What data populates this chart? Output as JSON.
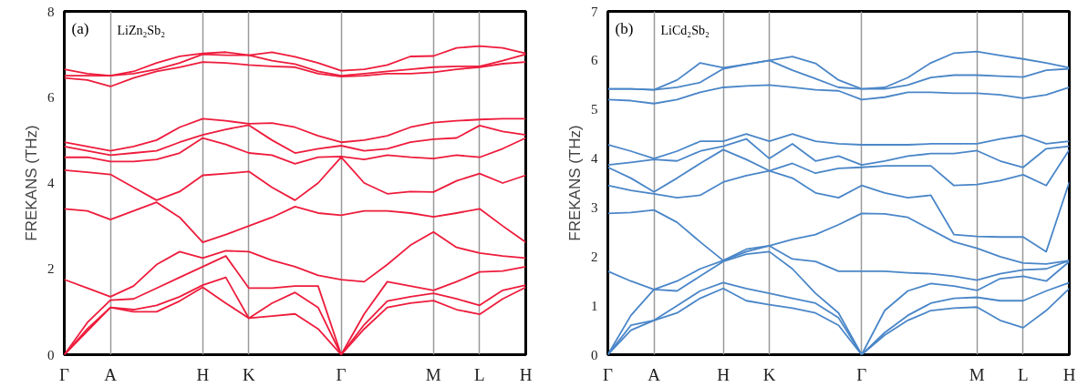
{
  "chart_data": [
    {
      "type": "line",
      "ylabel": "FREKANS (THz)",
      "annotations": [
        "(a)",
        "LiZn₂Sb₂"
      ],
      "categories": [
        "Γ",
        null,
        "A",
        null,
        null,
        null,
        "H",
        null,
        "K",
        null,
        null,
        null,
        "Γ",
        null,
        null,
        null,
        "M",
        null,
        "L",
        null,
        "H"
      ],
      "ylim": [
        0,
        8
      ],
      "yticks": [
        0,
        2,
        4,
        6,
        8
      ],
      "grid": "x",
      "line_style": "solid",
      "marker": "none",
      "series": [
        {
          "color": "#ee1c3c",
          "values": [
            0,
            0.55,
            1.1,
            1.0,
            1.0,
            1.25,
            1.57,
            1.2,
            0.85,
            0.9,
            0.95,
            0.6,
            0,
            0.6,
            1.1,
            1.2,
            1.26,
            1.05,
            0.94,
            1.3,
            1.57
          ]
        },
        {
          "color": "#ee1c3c",
          "values": [
            0,
            0.6,
            1.1,
            1.05,
            1.15,
            1.35,
            1.62,
            1.8,
            0.85,
            1.2,
            1.45,
            1.1,
            0,
            0.7,
            1.25,
            1.35,
            1.43,
            1.3,
            1.15,
            1.5,
            1.62
          ]
        },
        {
          "color": "#ee1c3c",
          "values": [
            0,
            0.75,
            1.27,
            1.3,
            1.55,
            1.8,
            2.05,
            2.3,
            1.55,
            1.55,
            1.6,
            1.6,
            0,
            0.95,
            1.7,
            1.6,
            1.5,
            1.7,
            1.93,
            1.95,
            2.05
          ]
        },
        {
          "color": "#ee1c3c",
          "values": [
            1.75,
            1.55,
            1.35,
            1.6,
            2.1,
            2.4,
            2.25,
            2.42,
            2.4,
            2.2,
            2.05,
            1.85,
            1.75,
            1.7,
            2.1,
            2.55,
            2.86,
            2.5,
            2.37,
            2.3,
            2.25
          ]
        },
        {
          "color": "#ee1c3c",
          "values": [
            3.4,
            3.35,
            3.15,
            3.35,
            3.55,
            3.2,
            2.62,
            2.8,
            3.0,
            3.2,
            3.45,
            3.3,
            3.25,
            3.35,
            3.35,
            3.3,
            3.21,
            3.3,
            3.4,
            3.0,
            2.62
          ]
        },
        {
          "color": "#ee1c3c",
          "values": [
            4.3,
            4.25,
            4.2,
            3.9,
            3.6,
            3.8,
            4.18,
            4.22,
            4.27,
            3.9,
            3.6,
            4.0,
            4.6,
            4.0,
            3.75,
            3.8,
            3.79,
            4.05,
            4.22,
            4.0,
            4.18
          ]
        },
        {
          "color": "#ee1c3c",
          "values": [
            4.6,
            4.6,
            4.5,
            4.5,
            4.55,
            4.7,
            5.05,
            4.9,
            4.7,
            4.65,
            4.45,
            4.6,
            4.62,
            4.55,
            4.65,
            4.6,
            4.57,
            4.65,
            4.6,
            4.8,
            5.05
          ]
        },
        {
          "color": "#ee1c3c",
          "values": [
            4.85,
            4.75,
            4.65,
            4.7,
            4.75,
            4.95,
            5.12,
            5.25,
            5.35,
            5.0,
            4.7,
            4.8,
            4.87,
            4.75,
            4.8,
            4.95,
            5.02,
            5.05,
            5.34,
            5.2,
            5.12
          ]
        },
        {
          "color": "#ee1c3c",
          "values": [
            4.95,
            4.85,
            4.75,
            4.85,
            5.0,
            5.3,
            5.5,
            5.45,
            5.38,
            5.4,
            5.3,
            5.1,
            4.95,
            5.0,
            5.1,
            5.3,
            5.41,
            5.45,
            5.48,
            5.5,
            5.5
          ]
        },
        {
          "color": "#ee1c3c",
          "values": [
            6.45,
            6.4,
            6.25,
            6.45,
            6.6,
            6.7,
            6.82,
            6.8,
            6.75,
            6.72,
            6.7,
            6.55,
            6.48,
            6.5,
            6.55,
            6.55,
            6.58,
            6.65,
            6.7,
            6.78,
            6.82
          ]
        },
        {
          "color": "#ee1c3c",
          "values": [
            6.5,
            6.5,
            6.5,
            6.55,
            6.65,
            6.8,
            7.0,
            6.98,
            6.98,
            6.85,
            6.77,
            6.6,
            6.5,
            6.55,
            6.6,
            6.65,
            6.7,
            6.72,
            6.72,
            6.85,
            7.0
          ]
        },
        {
          "color": "#ee1c3c",
          "values": [
            6.65,
            6.55,
            6.5,
            6.6,
            6.8,
            6.95,
            7.02,
            7.05,
            6.98,
            7.05,
            6.94,
            6.8,
            6.62,
            6.65,
            6.75,
            6.95,
            6.96,
            7.15,
            7.19,
            7.15,
            7.02
          ]
        }
      ]
    },
    {
      "type": "line",
      "ylabel": "FREKANS (THz)",
      "annotations": [
        "(b)",
        "LiCd₂Sb₂"
      ],
      "categories": [
        "Γ",
        null,
        "A",
        null,
        null,
        "H",
        null,
        "K",
        null,
        null,
        null,
        "Γ",
        null,
        null,
        null,
        null,
        "M",
        null,
        "L",
        null,
        "H"
      ],
      "ylim": [
        0,
        7
      ],
      "yticks": [
        0,
        1,
        2,
        3,
        4,
        5,
        6,
        7
      ],
      "grid": "x",
      "line_style": "solid",
      "marker": "none",
      "series": [
        {
          "color": "#4a86c8",
          "values": [
            0,
            0.5,
            0.7,
            0.85,
            1.15,
            1.35,
            1.1,
            1.02,
            0.95,
            0.85,
            0.6,
            0,
            0.4,
            0.7,
            0.9,
            0.95,
            0.97,
            0.7,
            0.55,
            0.9,
            1.35
          ]
        },
        {
          "color": "#4a86c8",
          "values": [
            0,
            0.6,
            0.7,
            1.0,
            1.3,
            1.47,
            1.35,
            1.25,
            1.15,
            1.05,
            0.75,
            0,
            0.45,
            0.8,
            1.05,
            1.15,
            1.17,
            1.1,
            1.1,
            1.3,
            1.47
          ]
        },
        {
          "color": "#4a86c8",
          "values": [
            0,
            0.8,
            1.33,
            1.3,
            1.6,
            1.9,
            2.05,
            2.1,
            1.75,
            1.25,
            0.85,
            0,
            0.9,
            1.3,
            1.45,
            1.4,
            1.31,
            1.55,
            1.6,
            1.5,
            1.9
          ]
        },
        {
          "color": "#4a86c8",
          "values": [
            1.7,
            1.5,
            1.33,
            1.5,
            1.75,
            1.92,
            2.1,
            2.22,
            1.95,
            1.9,
            1.7,
            1.7,
            1.7,
            1.67,
            1.65,
            1.6,
            1.52,
            1.65,
            1.73,
            1.75,
            1.92
          ]
        },
        {
          "color": "#4a86c8",
          "values": [
            2.88,
            2.9,
            2.95,
            2.7,
            2.3,
            1.92,
            2.15,
            2.22,
            2.35,
            2.45,
            2.65,
            2.88,
            2.87,
            2.8,
            2.55,
            2.3,
            2.17,
            2.0,
            1.87,
            1.85,
            1.92
          ]
        },
        {
          "color": "#4a86c8",
          "values": [
            3.45,
            3.35,
            3.28,
            3.2,
            3.25,
            3.52,
            3.65,
            3.75,
            3.6,
            3.3,
            3.2,
            3.45,
            3.3,
            3.2,
            3.25,
            2.45,
            2.41,
            2.4,
            2.4,
            2.1,
            3.52
          ]
        },
        {
          "color": "#4a86c8",
          "values": [
            3.82,
            3.6,
            3.32,
            3.6,
            3.9,
            4.18,
            3.98,
            3.75,
            3.9,
            3.7,
            3.8,
            3.82,
            3.85,
            3.85,
            3.85,
            3.45,
            3.47,
            3.55,
            3.67,
            3.45,
            4.18
          ]
        },
        {
          "color": "#4a86c8",
          "values": [
            3.87,
            3.92,
            3.98,
            3.95,
            4.15,
            4.25,
            4.4,
            4.0,
            4.3,
            3.95,
            4.05,
            3.87,
            3.95,
            4.05,
            4.1,
            4.1,
            4.16,
            3.95,
            3.82,
            4.2,
            4.25
          ]
        },
        {
          "color": "#4a86c8",
          "values": [
            4.28,
            4.15,
            4.0,
            4.15,
            4.35,
            4.35,
            4.5,
            4.35,
            4.5,
            4.35,
            4.3,
            4.28,
            4.28,
            4.28,
            4.3,
            4.3,
            4.3,
            4.4,
            4.47,
            4.3,
            4.35
          ]
        },
        {
          "color": "#4a86c8",
          "values": [
            5.2,
            5.18,
            5.12,
            5.2,
            5.35,
            5.45,
            5.48,
            5.5,
            5.45,
            5.4,
            5.38,
            5.2,
            5.25,
            5.35,
            5.35,
            5.33,
            5.33,
            5.3,
            5.23,
            5.3,
            5.45
          ]
        },
        {
          "color": "#4a86c8",
          "values": [
            5.42,
            5.42,
            5.4,
            5.45,
            5.55,
            5.83,
            5.92,
            6.0,
            5.8,
            5.63,
            5.45,
            5.42,
            5.42,
            5.5,
            5.65,
            5.7,
            5.7,
            5.68,
            5.66,
            5.8,
            5.83
          ]
        },
        {
          "color": "#4a86c8",
          "values": [
            5.42,
            5.42,
            5.4,
            5.6,
            5.95,
            5.85,
            5.92,
            6.0,
            6.08,
            5.94,
            5.6,
            5.42,
            5.45,
            5.65,
            5.95,
            6.15,
            6.18,
            6.1,
            6.03,
            5.95,
            5.85
          ]
        }
      ]
    }
  ]
}
